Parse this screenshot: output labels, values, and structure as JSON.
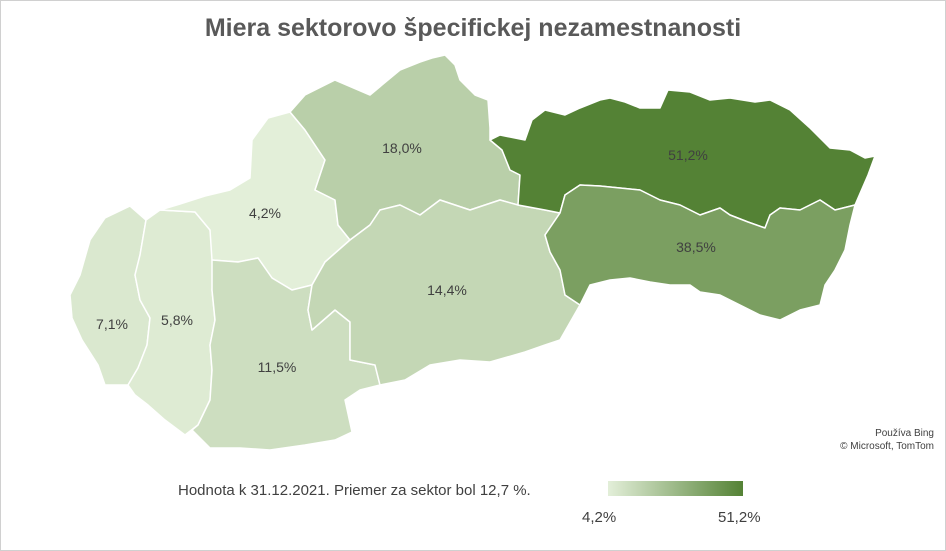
{
  "title": "Miera sektorovo špecifickej nezamestnanosti",
  "attribution": {
    "line1": "Používa Bing",
    "line2": "© Microsoft, TomTom"
  },
  "legend": {
    "note": "Hodnota k 31.12.2021. Priemer za sektor bol 12,7 %.",
    "min_label": "4,2%",
    "max_label": "51,2%",
    "min_value": 4.2,
    "max_value": 51.2,
    "color_min": "#e3efd9",
    "color_max": "#548235"
  },
  "regions": [
    {
      "value": 7.1,
      "label": "7,1%"
    },
    {
      "value": 5.8,
      "label": "5,8%"
    },
    {
      "value": 4.2,
      "label": "4,2%"
    },
    {
      "value": 11.5,
      "label": "11,5%"
    },
    {
      "value": 18.0,
      "label": "18,0%"
    },
    {
      "value": 14.4,
      "label": "14,4%"
    },
    {
      "value": 51.2,
      "label": "51,2%"
    },
    {
      "value": 38.5,
      "label": "38,5%"
    }
  ]
}
